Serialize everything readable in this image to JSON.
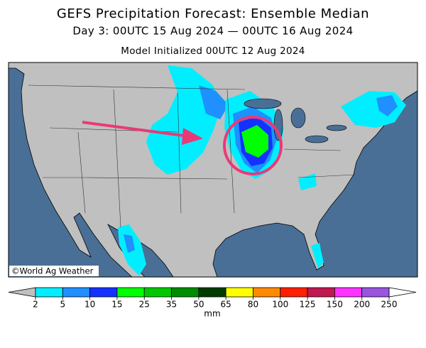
{
  "title": "GEFS Precipitation Forecast: Ensemble Median",
  "subtitle": "Day 3: 00UTC 15 Aug 2024 — 00UTC 16 Aug 2024",
  "initialized": "Model Initialized 00UTC 12 Aug 2024",
  "copyright": "©World Ag Weather",
  "colorbar": {
    "levels": [
      2,
      5,
      10,
      15,
      25,
      35,
      50,
      65,
      80,
      100,
      125,
      150,
      200,
      250
    ],
    "colors": [
      "#00eeff",
      "#1e90ff",
      "#1432ff",
      "#00ff00",
      "#00c800",
      "#008c00",
      "#003c00",
      "#ffff00",
      "#ff8c00",
      "#ff2000",
      "#c01850",
      "#ff33ff",
      "#9955dd"
    ],
    "under_color": "#c0c0c0",
    "over_color": "#ffffff",
    "units": "mm"
  }
}
